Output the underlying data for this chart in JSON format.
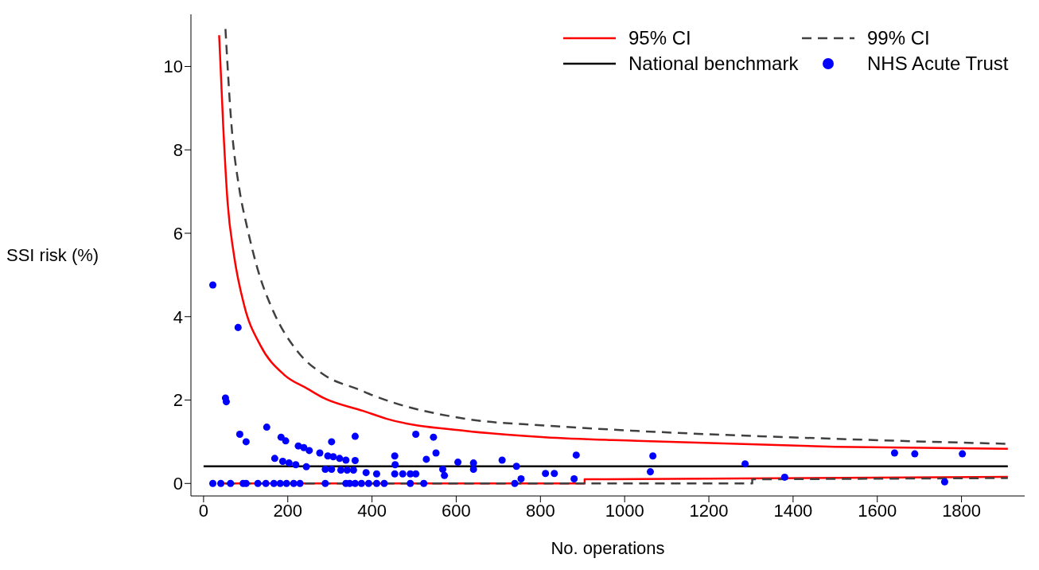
{
  "chart_data": {
    "type": "scatter",
    "xlabel": "No. operations",
    "ylabel": "SSI risk (%)",
    "xlim": [
      -30,
      1950
    ],
    "ylim": [
      -0.3,
      11.25
    ],
    "xticks": [
      0,
      200,
      400,
      600,
      800,
      1000,
      1200,
      1400,
      1600,
      1800
    ],
    "yticks": [
      0,
      2,
      4,
      6,
      8,
      10
    ],
    "legend": "top right",
    "series": [
      {
        "name": "95% CI",
        "type": "line",
        "color": "#ff0000",
        "line_style": "solid",
        "marker": "none",
        "x": [
          37,
          47,
          57,
          72,
          97,
          135,
          191,
          247,
          285,
          379,
          435,
          622,
          810,
          1029,
          1500,
          1910
        ],
        "values": [
          10.75,
          8.5,
          6.75,
          5.49,
          4.25,
          3.31,
          2.61,
          2.27,
          2.05,
          1.74,
          1.55,
          1.26,
          1.11,
          1.02,
          0.88,
          0.83
        ]
      },
      {
        "name": "99% CI",
        "type": "line",
        "color": "#404040",
        "line_style": "dashed",
        "marker": "none",
        "x": [
          52,
          66,
          85,
          104,
          129,
          166,
          222,
          285,
          372,
          403,
          622,
          810,
          1029,
          1500,
          1910
        ],
        "values": [
          10.9,
          8.63,
          7.06,
          6.12,
          5.12,
          4.12,
          3.18,
          2.61,
          2.24,
          2.11,
          1.55,
          1.39,
          1.26,
          1.07,
          0.95
        ]
      },
      {
        "name": "National benchmark",
        "type": "line",
        "color": "#000000",
        "line_style": "solid",
        "marker": "none",
        "x": [
          0,
          1910
        ],
        "values": [
          0.41,
          0.41
        ]
      },
      {
        "name": "NHS Acute Trust",
        "color": "#0000ff",
        "marker": "circle",
        "x": [
          22,
          82,
          52,
          54,
          86,
          101,
          150,
          184,
          195,
          225,
          238,
          251,
          169,
          188,
          203,
          219,
          244,
          276,
          295,
          308,
          323,
          338,
          360,
          304,
          360,
          289,
          304,
          326,
          341,
          356,
          386,
          411,
          454,
          455,
          454,
          473,
          491,
          504,
          504,
          546,
          552,
          529,
          568,
          572,
          604,
          641,
          641,
          709,
          743,
          754,
          739,
          812,
          833,
          880,
          885,
          1061,
          1067,
          1286,
          1380,
          1641,
          1689,
          1760,
          1802,
          22,
          41,
          64,
          94,
          101,
          129,
          148,
          167,
          182,
          197,
          214,
          229,
          289,
          338,
          347,
          360,
          375,
          392,
          411,
          429,
          491,
          523
        ],
        "values": [
          4.76,
          3.74,
          2.05,
          1.96,
          1.18,
          1.0,
          1.35,
          1.11,
          1.02,
          0.9,
          0.86,
          0.79,
          0.6,
          0.53,
          0.49,
          0.45,
          0.4,
          0.73,
          0.66,
          0.64,
          0.6,
          0.56,
          0.55,
          1.0,
          1.13,
          0.34,
          0.34,
          0.32,
          0.32,
          0.32,
          0.26,
          0.23,
          0.66,
          0.45,
          0.23,
          0.23,
          0.23,
          0.23,
          1.18,
          1.11,
          0.73,
          0.58,
          0.34,
          0.19,
          0.51,
          0.49,
          0.34,
          0.56,
          0.41,
          0.11,
          0,
          0.24,
          0.24,
          0.11,
          0.68,
          0.28,
          0.66,
          0.47,
          0.15,
          0.73,
          0.71,
          0.04,
          0.71,
          0,
          0,
          0,
          0,
          0,
          0,
          0,
          0,
          0,
          0,
          0,
          0,
          0,
          0,
          0,
          0,
          0,
          0,
          0,
          0,
          0,
          0
        ]
      },
      {
        "type": "line",
        "color": "#ff0000",
        "line_style": "solid",
        "marker": "none",
        "x": [
          37,
          905,
          905,
          1910
        ],
        "values": [
          0,
          0,
          0.1,
          0.16
        ]
      },
      {
        "type": "line",
        "color": "#404040",
        "line_style": "dashed",
        "marker": "none",
        "x": [
          52,
          1303,
          1303,
          1910
        ],
        "values": [
          0,
          0,
          0.1,
          0.13
        ]
      }
    ]
  }
}
